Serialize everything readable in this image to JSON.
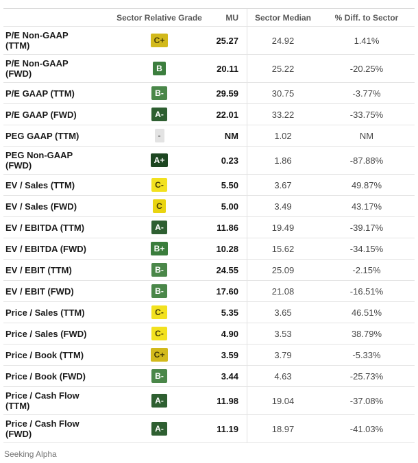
{
  "chart_data": {
    "type": "table",
    "title": "Valuation grades table",
    "columns": [
      "",
      "Sector Relative Grade",
      "MU",
      "Sector Median",
      "% Diff. to Sector"
    ],
    "rows": [
      {
        "metric": "P/E Non-GAAP\n(TTM)",
        "grade": "C+",
        "mu": "25.27",
        "sector_median": "24.92",
        "pct_diff": "1.41%"
      },
      {
        "metric": "P/E Non-GAAP\n(FWD)",
        "grade": "B",
        "mu": "20.11",
        "sector_median": "25.22",
        "pct_diff": "-20.25%"
      },
      {
        "metric": "P/E GAAP (TTM)",
        "grade": "B-",
        "mu": "29.59",
        "sector_median": "30.75",
        "pct_diff": "-3.77%"
      },
      {
        "metric": "P/E GAAP (FWD)",
        "grade": "A-",
        "mu": "22.01",
        "sector_median": "33.22",
        "pct_diff": "-33.75%"
      },
      {
        "metric": "PEG GAAP (TTM)",
        "grade": "-",
        "mu": "NM",
        "sector_median": "1.02",
        "pct_diff": "NM"
      },
      {
        "metric": "PEG Non-GAAP\n(FWD)",
        "grade": "A+",
        "mu": "0.23",
        "sector_median": "1.86",
        "pct_diff": "-87.88%"
      },
      {
        "metric": "EV / Sales (TTM)",
        "grade": "C-",
        "mu": "5.50",
        "sector_median": "3.67",
        "pct_diff": "49.87%"
      },
      {
        "metric": "EV / Sales (FWD)",
        "grade": "C",
        "mu": "5.00",
        "sector_median": "3.49",
        "pct_diff": "43.17%"
      },
      {
        "metric": "EV / EBITDA (TTM)",
        "grade": "A-",
        "mu": "11.86",
        "sector_median": "19.49",
        "pct_diff": "-39.17%"
      },
      {
        "metric": "EV / EBITDA (FWD)",
        "grade": "B+",
        "mu": "10.28",
        "sector_median": "15.62",
        "pct_diff": "-34.15%"
      },
      {
        "metric": "EV / EBIT (TTM)",
        "grade": "B-",
        "mu": "24.55",
        "sector_median": "25.09",
        "pct_diff": "-2.15%"
      },
      {
        "metric": "EV / EBIT (FWD)",
        "grade": "B-",
        "mu": "17.60",
        "sector_median": "21.08",
        "pct_diff": "-16.51%"
      },
      {
        "metric": "Price / Sales (TTM)",
        "grade": "C-",
        "mu": "5.35",
        "sector_median": "3.65",
        "pct_diff": "46.51%"
      },
      {
        "metric": "Price / Sales (FWD)",
        "grade": "C-",
        "mu": "4.90",
        "sector_median": "3.53",
        "pct_diff": "38.79%"
      },
      {
        "metric": "Price / Book (TTM)",
        "grade": "C+",
        "mu": "3.59",
        "sector_median": "3.79",
        "pct_diff": "-5.33%"
      },
      {
        "metric": "Price / Book (FWD)",
        "grade": "B-",
        "mu": "3.44",
        "sector_median": "4.63",
        "pct_diff": "-25.73%"
      },
      {
        "metric": "Price / Cash Flow\n(TTM)",
        "grade": "A-",
        "mu": "11.98",
        "sector_median": "19.04",
        "pct_diff": "-37.08%"
      },
      {
        "metric": "Price / Cash Flow\n(FWD)",
        "grade": "A-",
        "mu": "11.19",
        "sector_median": "18.97",
        "pct_diff": "-41.03%"
      }
    ]
  },
  "grade_colors": {
    "A+": {
      "bg": "#1d4621",
      "fg": "#ffffff"
    },
    "A-": {
      "bg": "#2e5f31",
      "fg": "#ffffff"
    },
    "B+": {
      "bg": "#3a7d3c",
      "fg": "#ffffff"
    },
    "B": {
      "bg": "#3c7e3e",
      "fg": "#ffffff"
    },
    "B-": {
      "bg": "#4a8749",
      "fg": "#ffffff"
    },
    "C+": {
      "bg": "#d2b91b",
      "fg": "#453c06"
    },
    "C": {
      "bg": "#e9d411",
      "fg": "#453c06"
    },
    "C-": {
      "bg": "#f2e11f",
      "fg": "#453c06"
    },
    "-": {
      "bg": "#e3e3e3",
      "fg": "#5f5f5f"
    }
  },
  "footer": {
    "attribution": "Seeking Alpha"
  }
}
